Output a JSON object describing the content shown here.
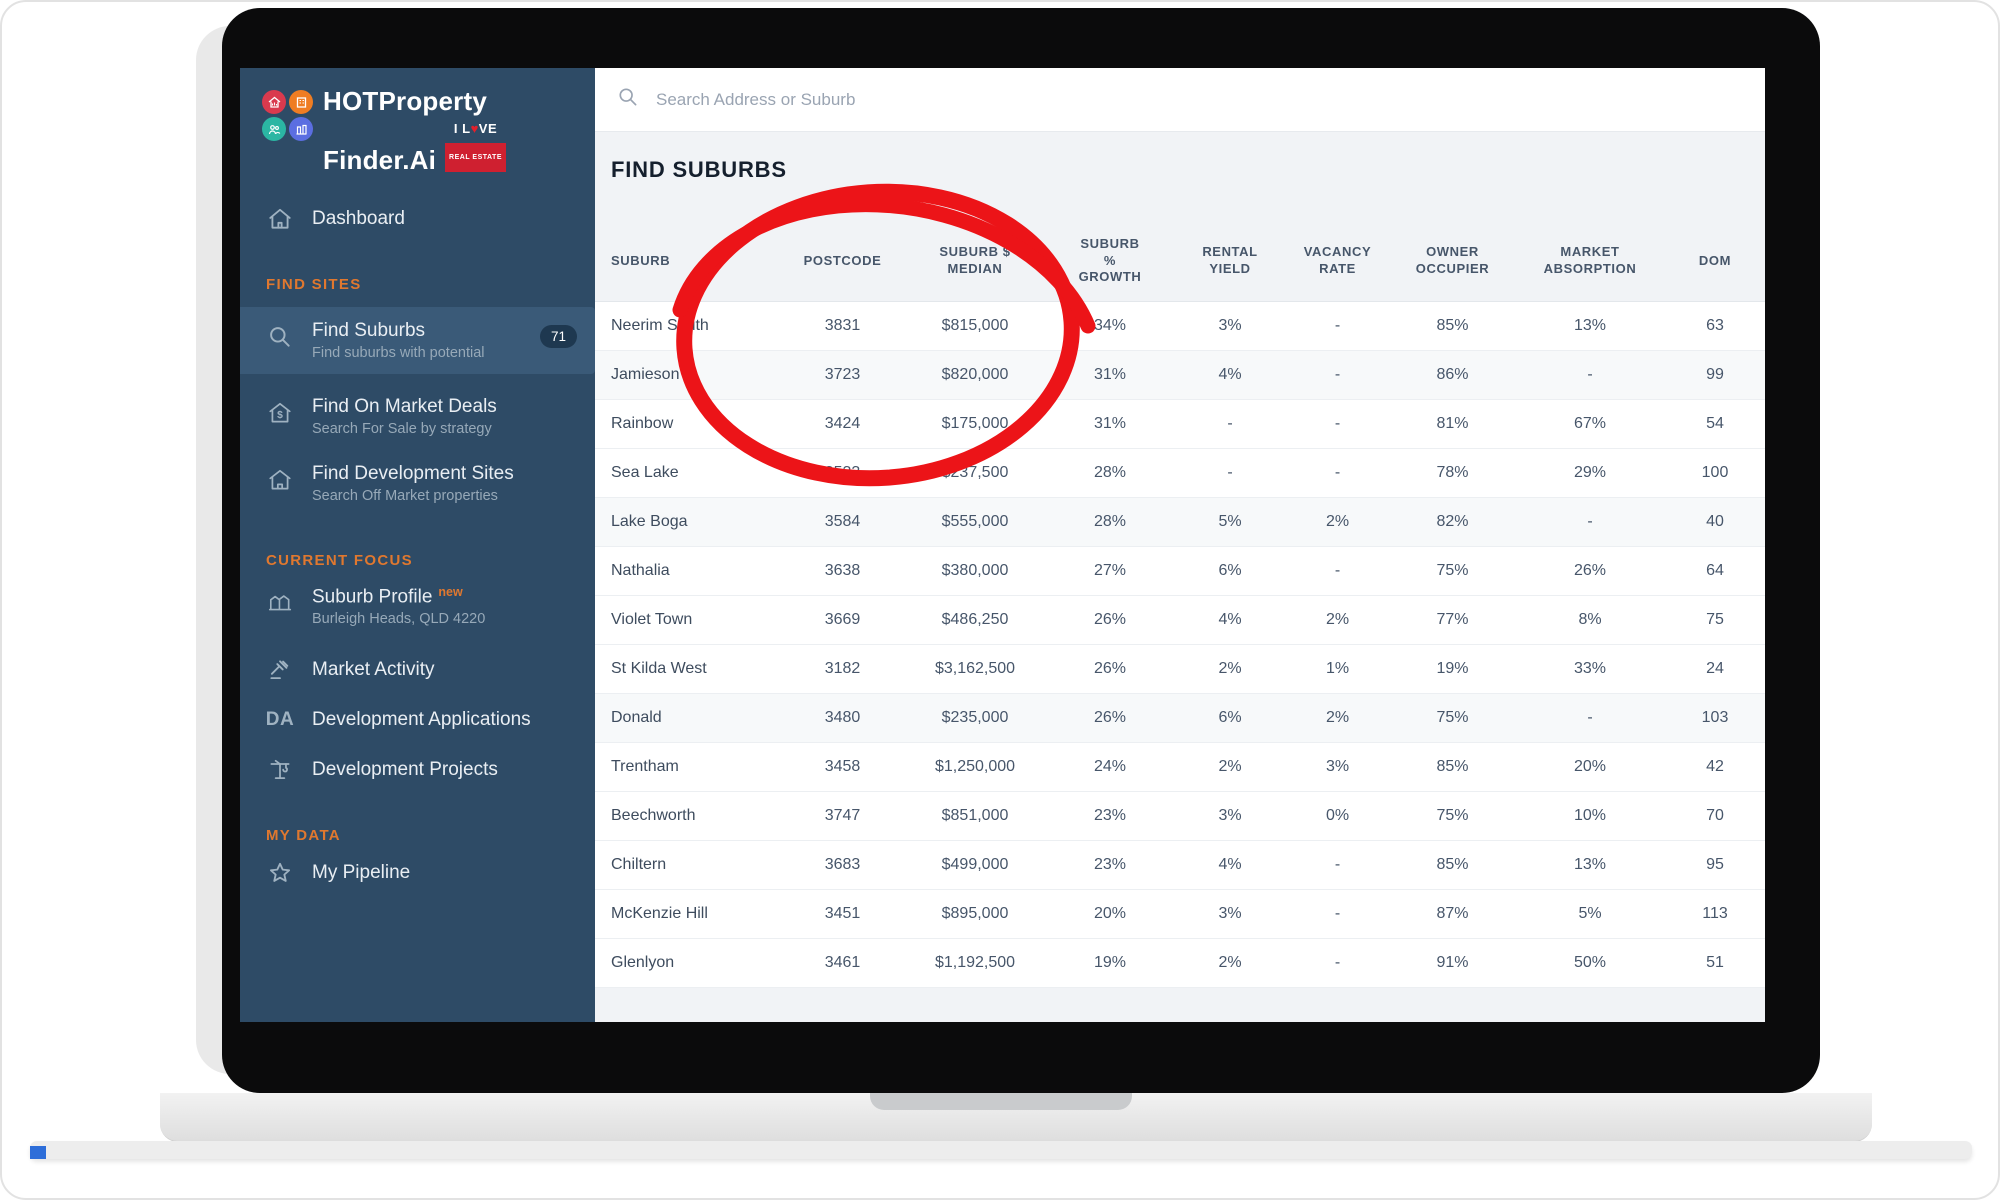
{
  "sidebar": {
    "logo": {
      "title_top": "HOTProperty",
      "title_bottom": "Finder.Ai",
      "tagline_top": "I L♥VE",
      "tagline_bottom": "REAL ESTATE"
    },
    "dashboard_label": "Dashboard",
    "sections": {
      "find_sites": "FIND SITES",
      "current_focus": "CURRENT FOCUS",
      "my_data": "MY DATA"
    },
    "find_suburbs": {
      "label": "Find Suburbs",
      "sublabel": "Find suburbs with potential",
      "badge": "71"
    },
    "find_on_market": {
      "label": "Find On Market Deals",
      "sublabel": "Search For Sale by strategy"
    },
    "find_dev_sites": {
      "label": "Find Development Sites",
      "sublabel": "Search Off Market properties"
    },
    "suburb_profile": {
      "label": "Suburb Profile",
      "tag": "new",
      "sublabel": "Burleigh Heads, QLD 4220"
    },
    "market_activity_label": "Market Activity",
    "dev_applications": {
      "label": "Development Applications",
      "icon_text": "DA"
    },
    "dev_projects_label": "Development Projects",
    "my_pipeline_label": "My Pipeline"
  },
  "search": {
    "placeholder": "Search Address or Suburb"
  },
  "main": {
    "title": "FIND SUBURBS"
  },
  "table": {
    "columns": [
      "SUBURB",
      "POSTCODE",
      "SUBURB $\nMEDIAN",
      "SUBURB\n%\nGROWTH",
      "RENTAL\nYIELD",
      "VACANCY\nRATE",
      "OWNER\nOCCUPIER",
      "MARKET\nABSORPTION",
      "DOM"
    ],
    "rows": [
      {
        "suburb": "Neerim South",
        "postcode": "3831",
        "median": "$815,000",
        "growth": "34%",
        "yield": "3%",
        "vacancy": "-",
        "owner": "85%",
        "absorption": "13%",
        "dom": "63",
        "shaded": false
      },
      {
        "suburb": "Jamieson",
        "postcode": "3723",
        "median": "$820,000",
        "growth": "31%",
        "yield": "4%",
        "vacancy": "-",
        "owner": "86%",
        "absorption": "-",
        "dom": "99",
        "shaded": true
      },
      {
        "suburb": "Rainbow",
        "postcode": "3424",
        "median": "$175,000",
        "growth": "31%",
        "yield": "-",
        "vacancy": "-",
        "owner": "81%",
        "absorption": "67%",
        "dom": "54",
        "shaded": false
      },
      {
        "suburb": "Sea Lake",
        "postcode": "3533",
        "median": "$237,500",
        "growth": "28%",
        "yield": "-",
        "vacancy": "-",
        "owner": "78%",
        "absorption": "29%",
        "dom": "100",
        "shaded": false
      },
      {
        "suburb": "Lake Boga",
        "postcode": "3584",
        "median": "$555,000",
        "growth": "28%",
        "yield": "5%",
        "vacancy": "2%",
        "owner": "82%",
        "absorption": "-",
        "dom": "40",
        "shaded": true
      },
      {
        "suburb": "Nathalia",
        "postcode": "3638",
        "median": "$380,000",
        "growth": "27%",
        "yield": "6%",
        "vacancy": "-",
        "owner": "75%",
        "absorption": "26%",
        "dom": "64",
        "shaded": false
      },
      {
        "suburb": "Violet Town",
        "postcode": "3669",
        "median": "$486,250",
        "growth": "26%",
        "yield": "4%",
        "vacancy": "2%",
        "owner": "77%",
        "absorption": "8%",
        "dom": "75",
        "shaded": false
      },
      {
        "suburb": "St Kilda West",
        "postcode": "3182",
        "median": "$3,162,500",
        "growth": "26%",
        "yield": "2%",
        "vacancy": "1%",
        "owner": "19%",
        "absorption": "33%",
        "dom": "24",
        "shaded": false
      },
      {
        "suburb": "Donald",
        "postcode": "3480",
        "median": "$235,000",
        "growth": "26%",
        "yield": "6%",
        "vacancy": "2%",
        "owner": "75%",
        "absorption": "-",
        "dom": "103",
        "shaded": true
      },
      {
        "suburb": "Trentham",
        "postcode": "3458",
        "median": "$1,250,000",
        "growth": "24%",
        "yield": "2%",
        "vacancy": "3%",
        "owner": "85%",
        "absorption": "20%",
        "dom": "42",
        "shaded": false
      },
      {
        "suburb": "Beechworth",
        "postcode": "3747",
        "median": "$851,000",
        "growth": "23%",
        "yield": "3%",
        "vacancy": "0%",
        "owner": "75%",
        "absorption": "10%",
        "dom": "70",
        "shaded": false
      },
      {
        "suburb": "Chiltern",
        "postcode": "3683",
        "median": "$499,000",
        "growth": "23%",
        "yield": "4%",
        "vacancy": "-",
        "owner": "85%",
        "absorption": "13%",
        "dom": "95",
        "shaded": false
      },
      {
        "suburb": "McKenzie Hill",
        "postcode": "3451",
        "median": "$895,000",
        "growth": "20%",
        "yield": "3%",
        "vacancy": "-",
        "owner": "87%",
        "absorption": "5%",
        "dom": "113",
        "shaded": false
      },
      {
        "suburb": "Glenlyon",
        "postcode": "3461",
        "median": "$1,192,500",
        "growth": "19%",
        "yield": "2%",
        "vacancy": "-",
        "owner": "91%",
        "absorption": "50%",
        "dom": "51",
        "shaded": false
      }
    ]
  },
  "annotation": {
    "shape": "hand-drawn-circle",
    "color": "#ec1418"
  },
  "colors": {
    "sidebar": "#2e4b66",
    "accent_orange": "#e0782f",
    "annotation_red": "#ec1418",
    "active_item": "#3a5a78"
  }
}
